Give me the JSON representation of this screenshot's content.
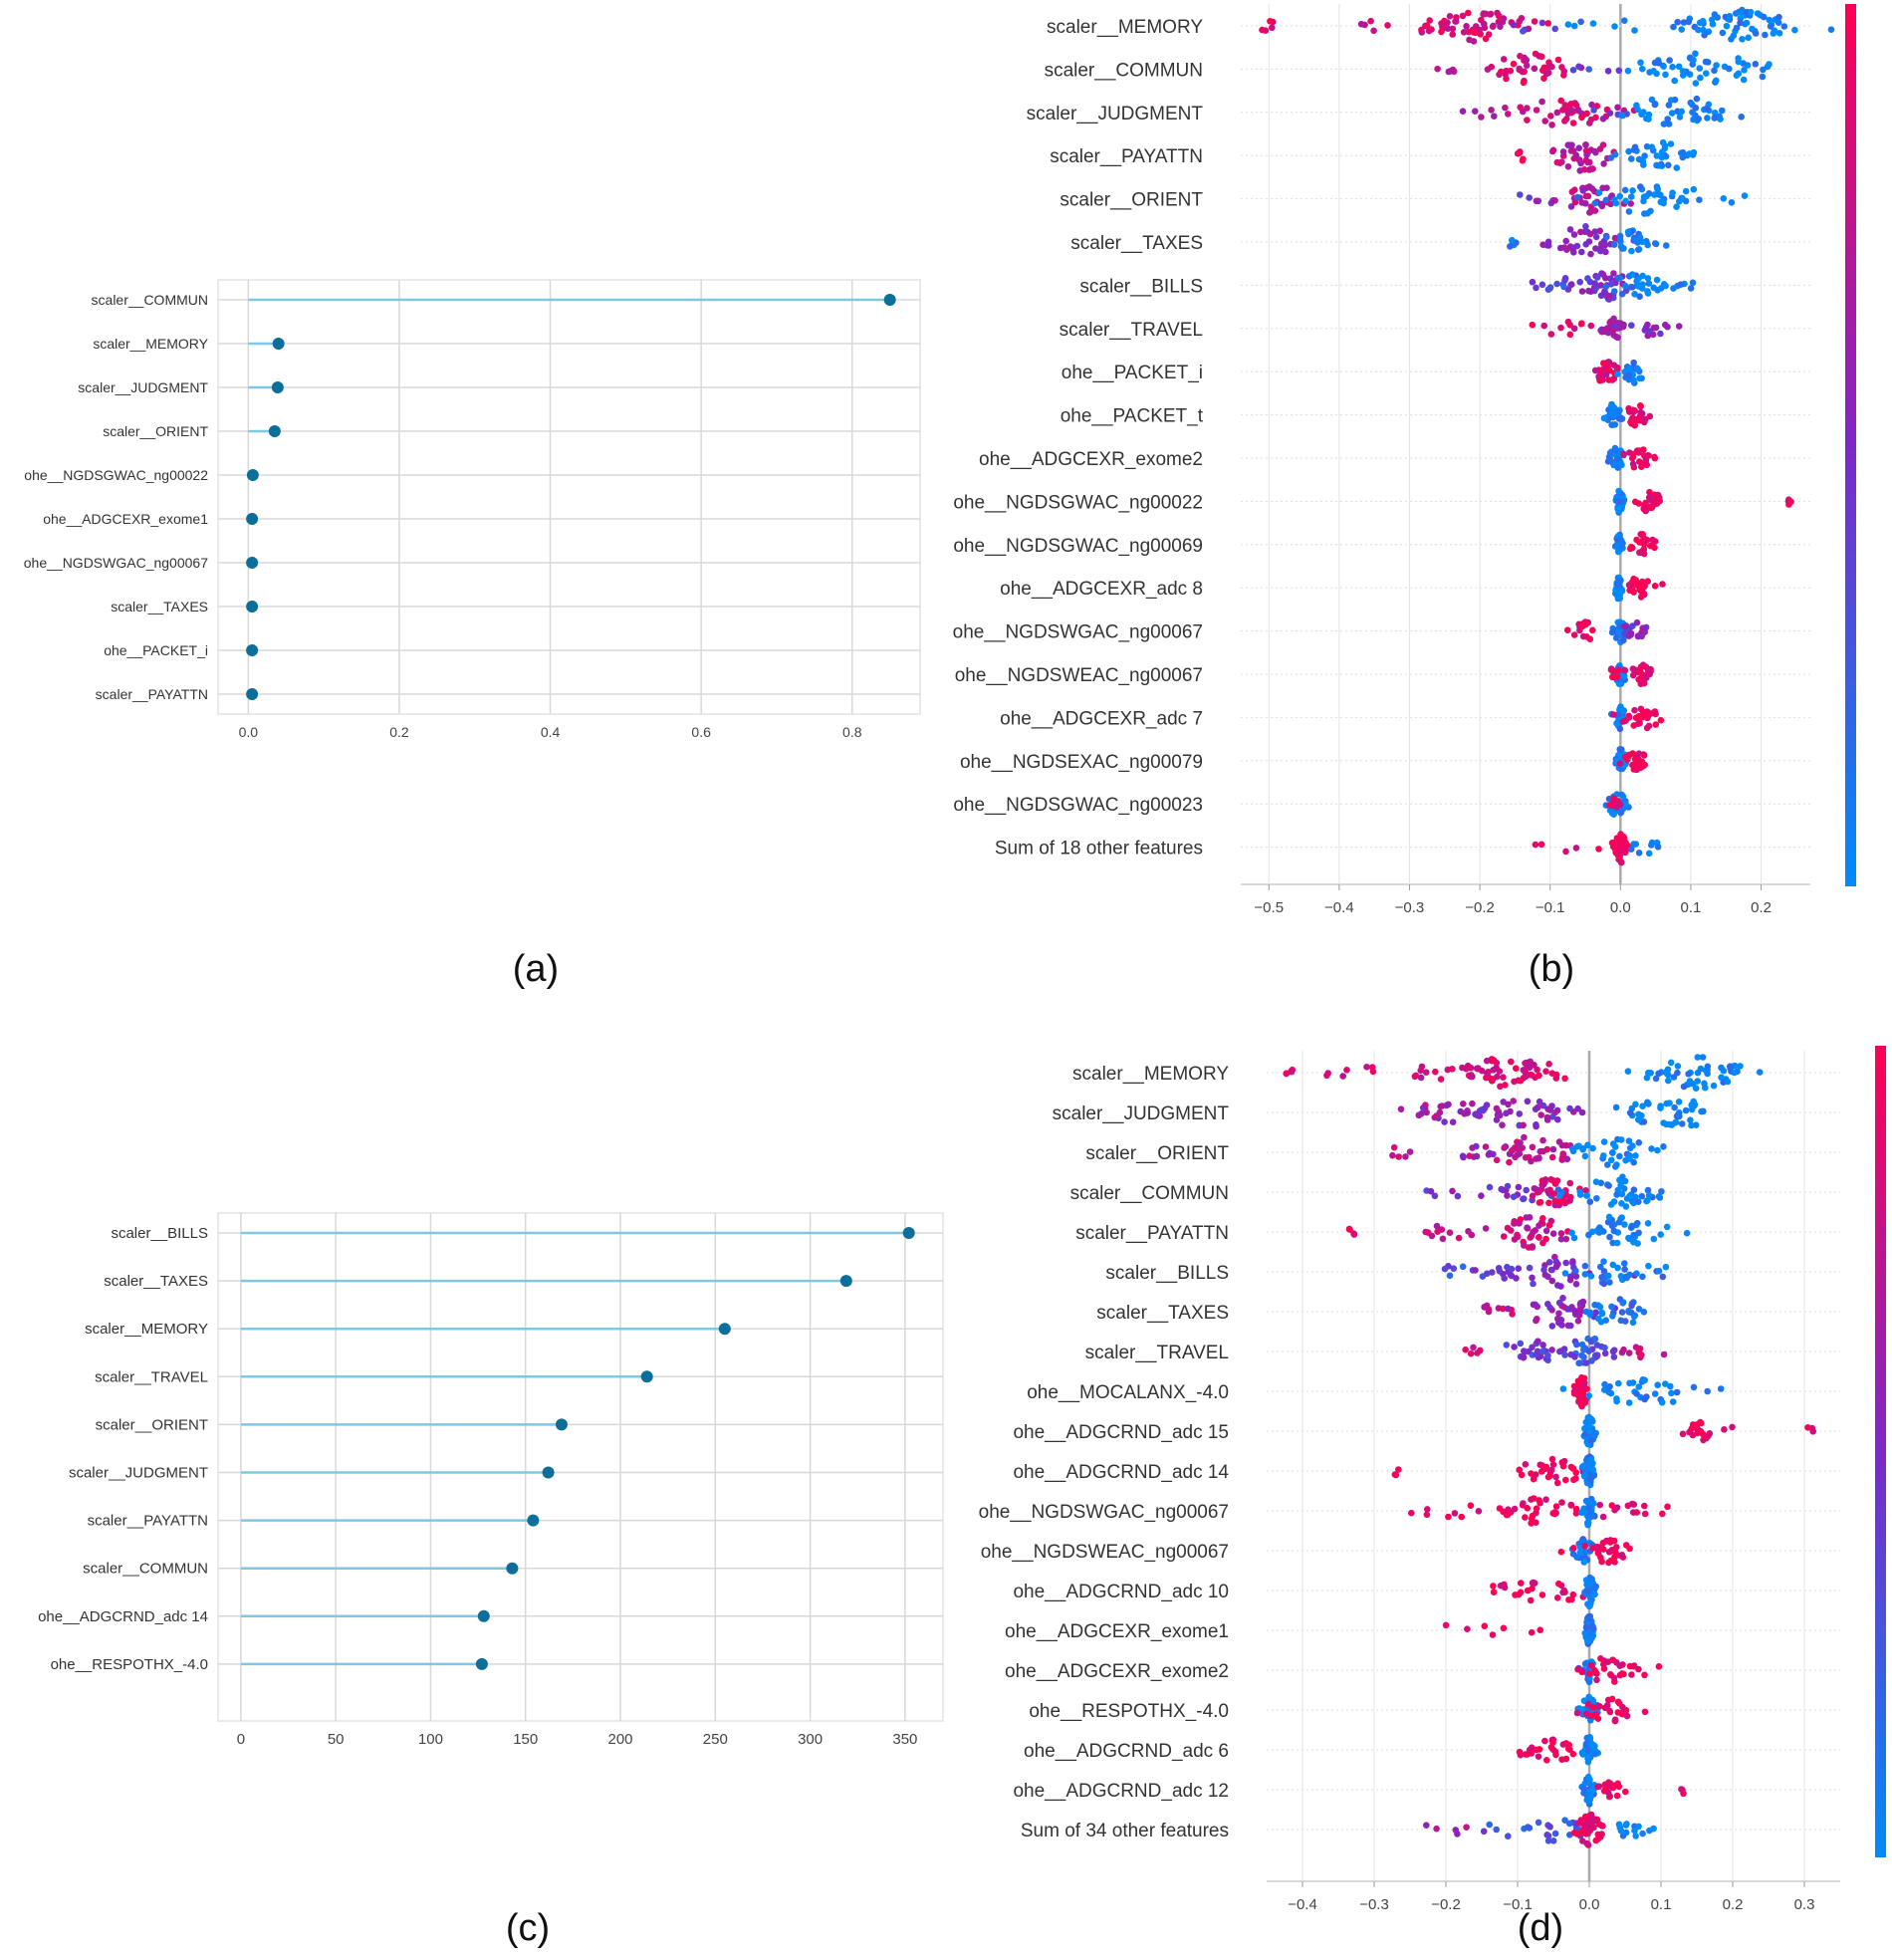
{
  "colors": {
    "lollipop_line": "#7ec8e3",
    "lollipop_dot": "#0d6e9a",
    "shap_low": "#008bfb",
    "shap_high": "#ff0052",
    "grid": "#d8d8d8"
  },
  "chart_data": [
    {
      "id": "a",
      "panel_label": "(a)",
      "type": "lollipop",
      "orientation": "horizontal",
      "grid": true,
      "categories": [
        "scaler__COMMUN",
        "scaler__MEMORY",
        "scaler__JUDGMENT",
        "scaler__ORIENT",
        "ohe__NGDSGWAC_ng00022",
        "ohe__ADGCEXR_exome1",
        "ohe__NGDSWGAC_ng00067",
        "scaler__TAXES",
        "ohe__PACKET_i",
        "scaler__PAYATTN"
      ],
      "values": [
        0.85,
        0.04,
        0.039,
        0.035,
        0.006,
        0.005,
        0.005,
        0.005,
        0.005,
        0.005
      ],
      "xlim": [
        -0.04,
        0.89
      ],
      "xticks": [
        0.0,
        0.2,
        0.4,
        0.6,
        0.8
      ],
      "xtick_labels": [
        "0.0",
        "0.2",
        "0.4",
        "0.6",
        "0.8"
      ]
    },
    {
      "id": "b",
      "panel_label": "(b)",
      "type": "scatter",
      "subtype": "shap_beeswarm",
      "colorbar": "right",
      "features": [
        "scaler__MEMORY",
        "scaler__COMMUN",
        "scaler__JUDGMENT",
        "scaler__PAYATTN",
        "scaler__ORIENT",
        "scaler__TAXES",
        "scaler__BILLS",
        "scaler__TRAVEL",
        "ohe__PACKET_i",
        "ohe__PACKET_t",
        "ohe__ADGCEXR_exome2",
        "ohe__NGDSGWAC_ng00022",
        "ohe__NGDSGWAC_ng00069",
        "ohe__ADGCEXR_adc 8",
        "ohe__NGDSWGAC_ng00067",
        "ohe__NGDSWEAC_ng00067",
        "ohe__ADGCEXR_adc 7",
        "ohe__NGDSEXAC_ng00079",
        "ohe__NGDSGWAC_ng00023",
        "Sum of 18 other features"
      ],
      "xlim": [
        -0.54,
        0.27
      ],
      "xticks": [
        -0.5,
        -0.4,
        -0.3,
        -0.2,
        -0.1,
        0.0,
        0.1,
        0.2
      ],
      "xtick_labels": [
        "−0.5",
        "−0.4",
        "−0.3",
        "−0.2",
        "−0.1",
        "0.0",
        "0.1",
        "0.2"
      ],
      "clusters": [
        [
          [
            -0.5,
            0.005,
            0.05,
            0.85
          ],
          [
            -0.35,
            0.02,
            0.06,
            0.85
          ],
          [
            -0.27,
            0.03,
            0.12,
            0.75
          ],
          [
            -0.2,
            0.04,
            0.55,
            0.85
          ],
          [
            -0.14,
            0.025,
            0.06,
            0.35
          ],
          [
            -0.05,
            0.06,
            0.08,
            0.05
          ],
          [
            0.17,
            0.045,
            0.6,
            0.02
          ],
          [
            0.1,
            0.03,
            0.08,
            0.05
          ]
        ],
        [
          [
            -0.24,
            0.02,
            0.05,
            0.7
          ],
          [
            -0.13,
            0.035,
            0.45,
            0.85
          ],
          [
            -0.05,
            0.025,
            0.05,
            0.35
          ],
          [
            0.11,
            0.06,
            0.55,
            0.02
          ]
        ],
        [
          [
            -0.2,
            0.02,
            0.06,
            0.6
          ],
          [
            -0.08,
            0.04,
            0.5,
            0.8
          ],
          [
            0.0,
            0.02,
            0.05,
            0.3
          ],
          [
            0.08,
            0.045,
            0.45,
            0.02
          ]
        ],
        [
          [
            -0.14,
            0.005,
            0.05,
            0.95
          ],
          [
            -0.05,
            0.025,
            0.45,
            0.75
          ],
          [
            0.06,
            0.03,
            0.4,
            0.02
          ]
        ],
        [
          [
            -0.12,
            0.015,
            0.05,
            0.5
          ],
          [
            -0.04,
            0.025,
            0.4,
            0.7
          ],
          [
            0.05,
            0.05,
            0.5,
            0.02
          ]
        ],
        [
          [
            -0.15,
            0.005,
            0.05,
            0.1
          ],
          [
            -0.05,
            0.03,
            0.45,
            0.55
          ],
          [
            0.02,
            0.02,
            0.3,
            0.05
          ]
        ],
        [
          [
            -0.08,
            0.03,
            0.15,
            0.3
          ],
          [
            -0.02,
            0.02,
            0.4,
            0.5
          ],
          [
            0.02,
            0.02,
            0.3,
            0.05
          ],
          [
            0.07,
            0.02,
            0.1,
            0.05
          ]
        ],
        [
          [
            -0.08,
            0.025,
            0.12,
            0.85
          ],
          [
            -0.01,
            0.01,
            0.3,
            0.6
          ],
          [
            0.04,
            0.015,
            0.15,
            0.5
          ]
        ],
        [
          [
            -0.02,
            0.01,
            0.3,
            0.85
          ],
          [
            0.02,
            0.01,
            0.3,
            0.05
          ]
        ],
        [
          [
            -0.01,
            0.006,
            0.3,
            0.05
          ],
          [
            0.025,
            0.01,
            0.3,
            0.9
          ]
        ],
        [
          [
            -0.005,
            0.006,
            0.3,
            0.05
          ],
          [
            0.025,
            0.01,
            0.25,
            0.9
          ]
        ],
        [
          [
            -0.002,
            0.003,
            0.3,
            0.05
          ],
          [
            0.04,
            0.012,
            0.25,
            0.95
          ],
          [
            0.24,
            0.002,
            0.05,
            0.95
          ]
        ],
        [
          [
            -0.002,
            0.003,
            0.3,
            0.05
          ],
          [
            0.03,
            0.01,
            0.25,
            0.95
          ]
        ],
        [
          [
            -0.002,
            0.003,
            0.3,
            0.05
          ],
          [
            0.03,
            0.012,
            0.3,
            0.95
          ]
        ],
        [
          [
            -0.05,
            0.01,
            0.2,
            0.9
          ],
          [
            0.0,
            0.005,
            0.3,
            0.05
          ],
          [
            0.02,
            0.01,
            0.2,
            0.5
          ]
        ],
        [
          [
            0.0,
            0.005,
            0.3,
            0.05
          ],
          [
            0.03,
            0.01,
            0.25,
            0.95
          ],
          [
            -0.01,
            0.005,
            0.1,
            0.95
          ]
        ],
        [
          [
            0.0,
            0.004,
            0.3,
            0.05
          ],
          [
            0.03,
            0.015,
            0.3,
            0.95
          ]
        ],
        [
          [
            0.0,
            0.004,
            0.3,
            0.05
          ],
          [
            0.02,
            0.01,
            0.25,
            0.95
          ]
        ],
        [
          [
            -0.005,
            0.008,
            0.3,
            0.05
          ],
          [
            -0.01,
            0.005,
            0.1,
            0.9
          ]
        ],
        [
          [
            -0.07,
            0.02,
            0.05,
            0.9
          ],
          [
            0.0,
            0.005,
            0.5,
            0.95
          ],
          [
            0.04,
            0.015,
            0.1,
            0.05
          ]
        ]
      ]
    },
    {
      "id": "c",
      "panel_label": "(c)",
      "type": "lollipop",
      "orientation": "horizontal",
      "grid": true,
      "categories": [
        "scaler__BILLS",
        "scaler__TAXES",
        "scaler__MEMORY",
        "scaler__TRAVEL",
        "scaler__ORIENT",
        "scaler__JUDGMENT",
        "scaler__PAYATTN",
        "scaler__COMMUN",
        "ohe__ADGCRND_adc 14",
        "ohe__RESPOTHX_-4.0"
      ],
      "values": [
        352,
        319,
        255,
        214,
        169,
        162,
        154,
        143,
        128,
        127
      ],
      "xlim": [
        -12,
        370
      ],
      "xticks": [
        0,
        50,
        100,
        150,
        200,
        250,
        300,
        350
      ],
      "xtick_labels": [
        "0",
        "50",
        "100",
        "150",
        "200",
        "250",
        "300",
        "350"
      ]
    },
    {
      "id": "d",
      "panel_label": "(d)",
      "type": "scatter",
      "subtype": "shap_beeswarm",
      "colorbar": "right",
      "features": [
        "scaler__MEMORY",
        "scaler__JUDGMENT",
        "scaler__ORIENT",
        "scaler__COMMUN",
        "scaler__PAYATTN",
        "scaler__BILLS",
        "scaler__TAXES",
        "scaler__TRAVEL",
        "ohe__MOCALANX_-4.0",
        "ohe__ADGCRND_adc 15",
        "ohe__ADGCRND_adc 14",
        "ohe__NGDSWGAC_ng00067",
        "ohe__NGDSWEAC_ng00067",
        "ohe__ADGCRND_adc 10",
        "ohe__ADGCEXR_exome1",
        "ohe__ADGCEXR_exome2",
        "ohe__RESPOTHX_-4.0",
        "ohe__ADGCRND_adc 6",
        "ohe__ADGCRND_adc 12",
        "Sum of 34 other features"
      ],
      "xlim": [
        -0.45,
        0.35
      ],
      "xticks": [
        -0.4,
        -0.3,
        -0.2,
        -0.1,
        0.0,
        0.1,
        0.2,
        0.3
      ],
      "xtick_labels": [
        "−0.4",
        "−0.3",
        "−0.2",
        "−0.1",
        "0.0",
        "0.1",
        "0.2",
        "0.3"
      ],
      "clusters": [
        [
          [
            -0.42,
            0.005,
            0.05,
            0.85
          ],
          [
            -0.32,
            0.02,
            0.08,
            0.8
          ],
          [
            -0.2,
            0.03,
            0.2,
            0.8
          ],
          [
            -0.11,
            0.04,
            0.55,
            0.85
          ],
          [
            0.15,
            0.04,
            0.55,
            0.02
          ]
        ],
        [
          [
            -0.18,
            0.04,
            0.3,
            0.6
          ],
          [
            -0.1,
            0.05,
            0.45,
            0.55
          ],
          [
            0.12,
            0.04,
            0.45,
            0.02
          ]
        ],
        [
          [
            -0.27,
            0.01,
            0.05,
            0.8
          ],
          [
            -0.15,
            0.02,
            0.1,
            0.5
          ],
          [
            -0.08,
            0.035,
            0.45,
            0.75
          ],
          [
            0.04,
            0.035,
            0.4,
            0.02
          ]
        ],
        [
          [
            -0.2,
            0.02,
            0.06,
            0.5
          ],
          [
            -0.1,
            0.03,
            0.2,
            0.5
          ],
          [
            -0.05,
            0.02,
            0.4,
            0.85
          ],
          [
            0.04,
            0.035,
            0.45,
            0.02
          ]
        ],
        [
          [
            -0.33,
            0.005,
            0.04,
            0.95
          ],
          [
            -0.2,
            0.025,
            0.12,
            0.7
          ],
          [
            -0.08,
            0.03,
            0.45,
            0.8
          ],
          [
            0.04,
            0.035,
            0.45,
            0.02
          ]
        ],
        [
          [
            -0.18,
            0.02,
            0.1,
            0.3
          ],
          [
            -0.05,
            0.04,
            0.45,
            0.5
          ],
          [
            0.04,
            0.035,
            0.35,
            0.1
          ]
        ],
        [
          [
            -0.13,
            0.02,
            0.1,
            0.85
          ],
          [
            -0.04,
            0.03,
            0.45,
            0.6
          ],
          [
            0.04,
            0.03,
            0.35,
            0.1
          ]
        ],
        [
          [
            -0.16,
            0.01,
            0.05,
            0.8
          ],
          [
            -0.08,
            0.025,
            0.3,
            0.4
          ],
          [
            0.0,
            0.02,
            0.4,
            0.3
          ],
          [
            0.07,
            0.015,
            0.1,
            0.8
          ]
        ],
        [
          [
            -0.01,
            0.005,
            0.45,
            0.95
          ],
          [
            0.08,
            0.04,
            0.4,
            0.02
          ]
        ],
        [
          [
            0.0,
            0.004,
            0.45,
            0.05
          ],
          [
            0.16,
            0.015,
            0.2,
            0.95
          ],
          [
            0.31,
            0.002,
            0.03,
            0.95
          ]
        ],
        [
          [
            -0.05,
            0.03,
            0.35,
            0.95
          ],
          [
            -0.27,
            0.002,
            0.03,
            0.95
          ],
          [
            0.0,
            0.004,
            0.45,
            0.05
          ]
        ],
        [
          [
            -0.07,
            0.03,
            0.35,
            0.95
          ],
          [
            -0.18,
            0.03,
            0.1,
            0.95
          ],
          [
            0.0,
            0.004,
            0.45,
            0.05
          ],
          [
            0.05,
            0.03,
            0.15,
            0.9
          ]
        ],
        [
          [
            -0.01,
            0.01,
            0.3,
            0.05
          ],
          [
            0.03,
            0.02,
            0.35,
            0.95
          ]
        ],
        [
          [
            -0.06,
            0.04,
            0.3,
            0.95
          ],
          [
            0.0,
            0.004,
            0.45,
            0.05
          ]
        ],
        [
          [
            -0.15,
            0.05,
            0.08,
            0.95
          ],
          [
            0.0,
            0.003,
            0.45,
            0.05
          ]
        ],
        [
          [
            0.0,
            0.004,
            0.3,
            0.05
          ],
          [
            0.03,
            0.025,
            0.35,
            0.95
          ]
        ],
        [
          [
            0.0,
            0.006,
            0.4,
            0.05
          ],
          [
            0.03,
            0.02,
            0.3,
            0.95
          ]
        ],
        [
          [
            -0.05,
            0.025,
            0.3,
            0.95
          ],
          [
            0.0,
            0.004,
            0.4,
            0.05
          ]
        ],
        [
          [
            0.0,
            0.004,
            0.4,
            0.05
          ],
          [
            0.03,
            0.01,
            0.2,
            0.95
          ],
          [
            0.13,
            0.002,
            0.03,
            0.95
          ]
        ],
        [
          [
            -0.2,
            0.03,
            0.06,
            0.6
          ],
          [
            -0.06,
            0.04,
            0.3,
            0.3
          ],
          [
            0.0,
            0.01,
            0.5,
            0.95
          ],
          [
            0.05,
            0.02,
            0.15,
            0.05
          ]
        ]
      ]
    }
  ]
}
